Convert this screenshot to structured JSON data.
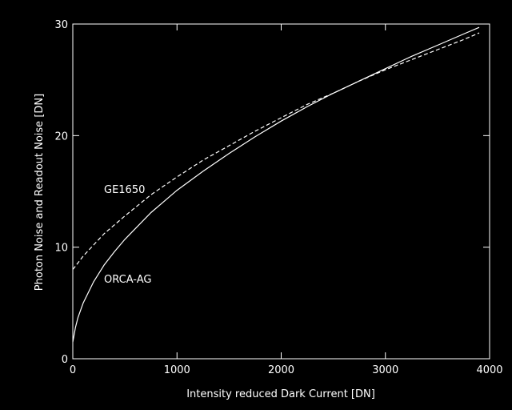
{
  "chart_data": {
    "type": "line",
    "xlabel": "Intensity reduced Dark Current [DN]",
    "ylabel": "Photon Noise and Readout Noise [DN]",
    "x": [
      0,
      25,
      50,
      100,
      200,
      300,
      400,
      500,
      750,
      1000,
      1250,
      1500,
      1750,
      2000,
      2250,
      2500,
      2750,
      3000,
      3250,
      3500,
      3750,
      3900
    ],
    "series": [
      {
        "name": "ORCA-AG",
        "color": "#ffffff",
        "dash": false,
        "values": [
          1.5,
          2.8,
          3.7,
          5.0,
          6.9,
          8.4,
          9.6,
          10.7,
          13.1,
          15.1,
          16.8,
          18.4,
          19.9,
          21.3,
          22.6,
          23.8,
          24.9,
          26.0,
          27.1,
          28.1,
          29.1,
          29.7
        ]
      },
      {
        "name": "GE1650",
        "color": "#ffffff",
        "dash": true,
        "values": [
          8.0,
          8.3,
          8.6,
          9.2,
          10.2,
          11.2,
          12.0,
          12.8,
          14.7,
          16.3,
          17.8,
          19.1,
          20.4,
          21.6,
          22.8,
          23.8,
          24.9,
          25.9,
          26.8,
          27.7,
          28.6,
          29.2
        ]
      }
    ],
    "xlim": [
      0,
      4000
    ],
    "xticks": [
      0,
      1000,
      2000,
      3000,
      4000
    ],
    "ylim": [
      0,
      30
    ],
    "yticks": [
      0,
      10,
      20,
      30
    ]
  }
}
